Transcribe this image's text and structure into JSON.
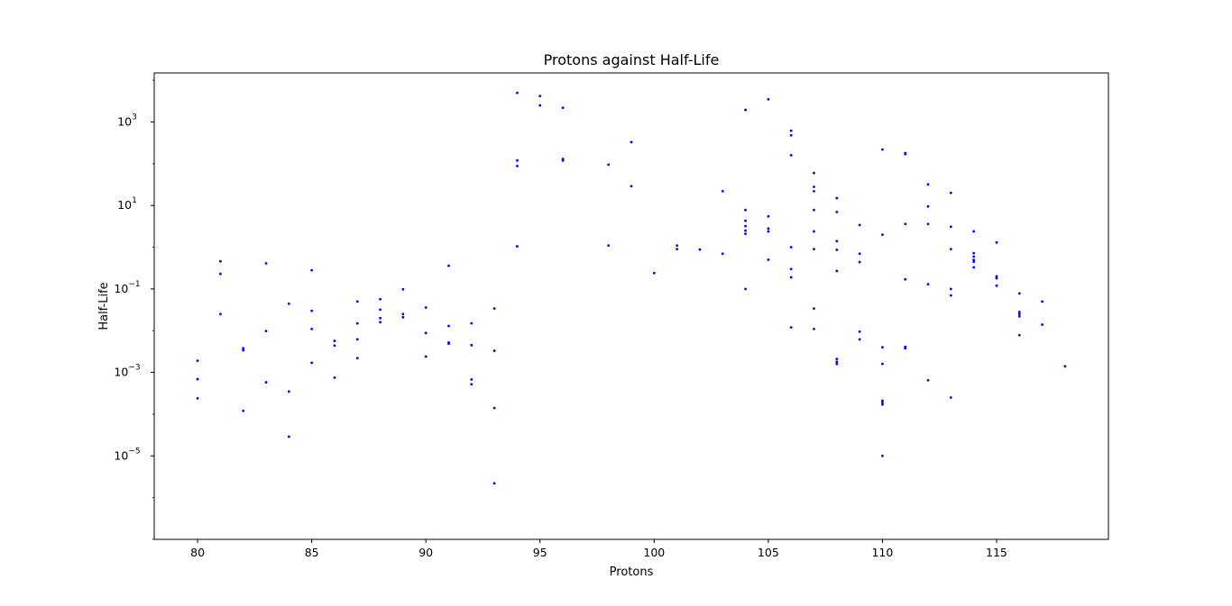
{
  "chart_data": {
    "type": "scatter",
    "title": "Protons against Half-Life",
    "xlabel": "Protons",
    "ylabel": "Half-Life",
    "xlim": [
      78.1,
      119.9
    ],
    "ylim": [
      1e-07,
      15000
    ],
    "yscale": "log",
    "grid": false,
    "legend": "none",
    "marker_color": "#0000ff",
    "x_ticks": [
      {
        "value": 80,
        "label": "80"
      },
      {
        "value": 85,
        "label": "85"
      },
      {
        "value": 90,
        "label": "90"
      },
      {
        "value": 95,
        "label": "95"
      },
      {
        "value": 100,
        "label": "100"
      },
      {
        "value": 105,
        "label": "105"
      },
      {
        "value": 110,
        "label": "110"
      },
      {
        "value": 115,
        "label": "115"
      }
    ],
    "y_ticks": [
      {
        "value": 1e-05,
        "base": "10",
        "exp": "−5"
      },
      {
        "value": 0.001,
        "base": "10",
        "exp": "−3"
      },
      {
        "value": 0.1,
        "base": "10",
        "exp": "−1"
      },
      {
        "value": 10,
        "base": "10",
        "exp": "1"
      },
      {
        "value": 1000,
        "base": "10",
        "exp": "3"
      }
    ],
    "points": [
      [
        80,
        0.0019
      ],
      [
        80,
        0.00069
      ],
      [
        80,
        0.00024
      ],
      [
        81,
        0.46
      ],
      [
        81,
        0.23
      ],
      [
        81,
        0.025
      ],
      [
        82,
        0.0038
      ],
      [
        82,
        0.0034
      ],
      [
        82,
        0.00012
      ],
      [
        83,
        0.41
      ],
      [
        83,
        0.0098
      ],
      [
        83,
        0.00058
      ],
      [
        84,
        0.044
      ],
      [
        84,
        0.00035
      ],
      [
        84,
        2.9e-05
      ],
      [
        85,
        0.28
      ],
      [
        85,
        0.03
      ],
      [
        85,
        0.011
      ],
      [
        85,
        0.0017
      ],
      [
        86,
        0.0057
      ],
      [
        86,
        0.0044
      ],
      [
        86,
        0.00075
      ],
      [
        87,
        0.05
      ],
      [
        87,
        0.015
      ],
      [
        87,
        0.0062
      ],
      [
        87,
        0.0022
      ],
      [
        88,
        0.057
      ],
      [
        88,
        0.032
      ],
      [
        88,
        0.02
      ],
      [
        88,
        0.016
      ],
      [
        89,
        0.098
      ],
      [
        89,
        0.025
      ],
      [
        89,
        0.021
      ],
      [
        90,
        0.036
      ],
      [
        90,
        0.0088
      ],
      [
        90,
        0.0024
      ],
      [
        91,
        0.36
      ],
      [
        91,
        0.013
      ],
      [
        91,
        0.0052
      ],
      [
        91,
        0.0049
      ],
      [
        92,
        0.015
      ],
      [
        92,
        0.0045
      ],
      [
        92,
        0.00068
      ],
      [
        92,
        0.00052
      ],
      [
        93,
        0.034
      ],
      [
        93,
        0.0033
      ],
      [
        93,
        0.00014
      ],
      [
        93,
        2.2e-06
      ],
      [
        94,
        5000
      ],
      [
        94,
        120
      ],
      [
        94,
        88
      ],
      [
        94,
        1.05
      ],
      [
        95,
        4200
      ],
      [
        95,
        2500
      ],
      [
        96,
        2200
      ],
      [
        96,
        130
      ],
      [
        96,
        120
      ],
      [
        98,
        95
      ],
      [
        98,
        1.1
      ],
      [
        99,
        330
      ],
      [
        99,
        29
      ],
      [
        100,
        0.24
      ],
      [
        101,
        1.1
      ],
      [
        101,
        0.9
      ],
      [
        102,
        0.88
      ],
      [
        103,
        22
      ],
      [
        103,
        0.7
      ],
      [
        104,
        1950
      ],
      [
        104,
        7.8
      ],
      [
        104,
        4.3
      ],
      [
        104,
        3.2
      ],
      [
        104,
        2.5
      ],
      [
        104,
        2.1
      ],
      [
        104,
        0.1
      ],
      [
        105,
        3500
      ],
      [
        105,
        5.5
      ],
      [
        105,
        2.8
      ],
      [
        105,
        2.4
      ],
      [
        105,
        0.5
      ],
      [
        106,
        620
      ],
      [
        106,
        480
      ],
      [
        106,
        160
      ],
      [
        106,
        1.0
      ],
      [
        106,
        0.3
      ],
      [
        106,
        0.19
      ],
      [
        106,
        0.012
      ],
      [
        107,
        60
      ],
      [
        107,
        28
      ],
      [
        107,
        22
      ],
      [
        107,
        7.8
      ],
      [
        107,
        2.4
      ],
      [
        107,
        0.9
      ],
      [
        107,
        0.034
      ],
      [
        107,
        0.011
      ],
      [
        108,
        15
      ],
      [
        108,
        7.0
      ],
      [
        108,
        1.4
      ],
      [
        108,
        0.87
      ],
      [
        108,
        0.27
      ],
      [
        108,
        0.0021
      ],
      [
        108,
        0.0018
      ],
      [
        108,
        0.0016
      ],
      [
        109,
        3.4
      ],
      [
        109,
        0.7
      ],
      [
        109,
        0.44
      ],
      [
        109,
        0.0095
      ],
      [
        109,
        0.0062
      ],
      [
        110,
        220
      ],
      [
        110,
        2.0
      ],
      [
        110,
        0.004
      ],
      [
        110,
        0.0016
      ],
      [
        110,
        0.00021
      ],
      [
        110,
        0.00019
      ],
      [
        110,
        0.00017
      ],
      [
        110,
        1e-05
      ],
      [
        111,
        180
      ],
      [
        111,
        170
      ],
      [
        111,
        3.6
      ],
      [
        111,
        0.17
      ],
      [
        111,
        0.0041
      ],
      [
        111,
        0.0038
      ],
      [
        112,
        32
      ],
      [
        112,
        9.5
      ],
      [
        112,
        3.6
      ],
      [
        112,
        0.13
      ],
      [
        112,
        0.00065
      ],
      [
        113,
        20
      ],
      [
        113,
        3.1
      ],
      [
        113,
        0.9
      ],
      [
        113,
        0.1
      ],
      [
        113,
        0.07
      ],
      [
        113,
        0.00025
      ],
      [
        114,
        2.4
      ],
      [
        114,
        0.72
      ],
      [
        114,
        0.6
      ],
      [
        114,
        0.5
      ],
      [
        114,
        0.45
      ],
      [
        114,
        0.33
      ],
      [
        115,
        1.3
      ],
      [
        115,
        0.2
      ],
      [
        115,
        0.18
      ],
      [
        115,
        0.12
      ],
      [
        116,
        0.078
      ],
      [
        116,
        0.028
      ],
      [
        116,
        0.025
      ],
      [
        116,
        0.022
      ],
      [
        116,
        0.0078
      ],
      [
        117,
        0.05
      ],
      [
        117,
        0.014
      ],
      [
        118,
        0.0014
      ]
    ]
  }
}
